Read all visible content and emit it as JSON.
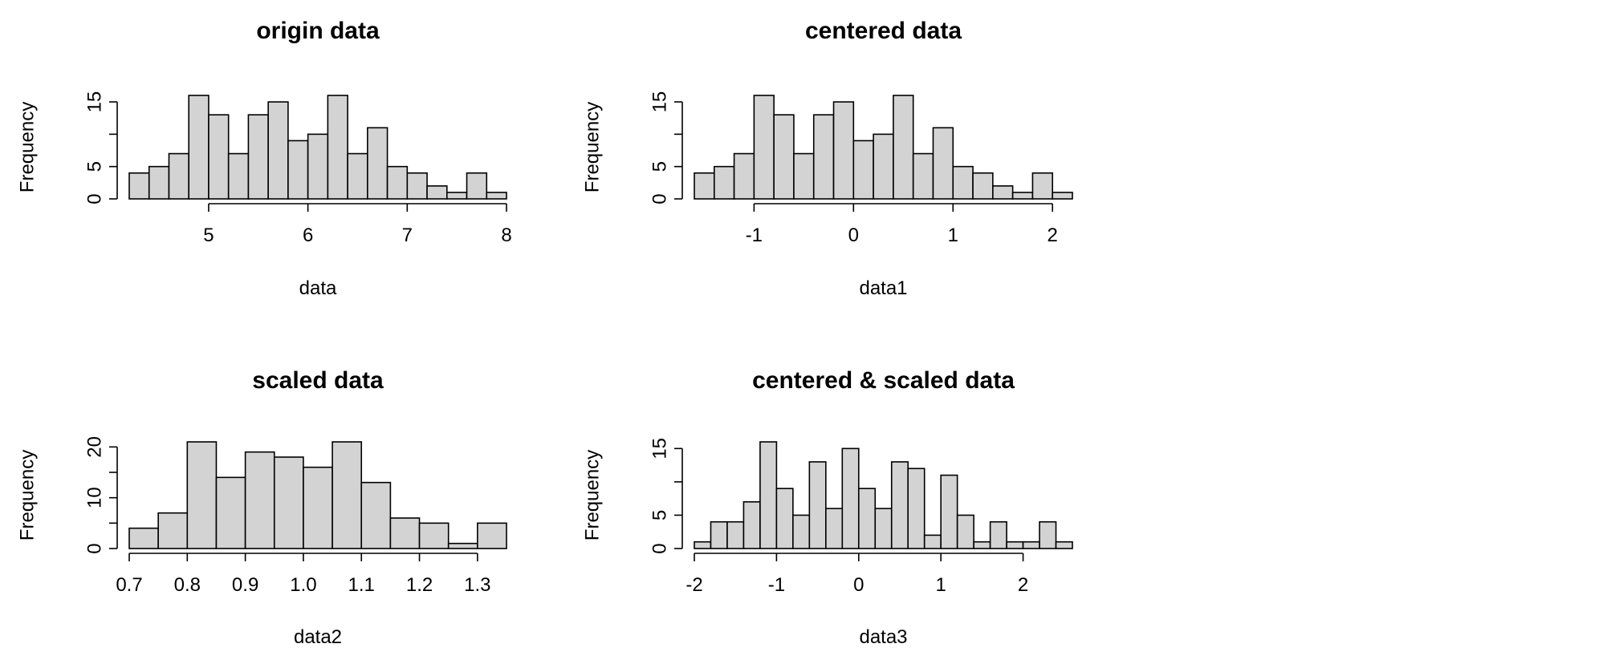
{
  "chart_data": [
    {
      "type": "bar",
      "title": "origin data",
      "xlabel": "data",
      "ylabel": "Frequency",
      "bin_edges": [
        4.2,
        4.4,
        4.6,
        4.8,
        5.0,
        5.2,
        5.4,
        5.6,
        5.8,
        6.0,
        6.2,
        6.4,
        6.6,
        6.8,
        7.0,
        7.2,
        7.4,
        7.6,
        7.8,
        8.0
      ],
      "values": [
        4,
        5,
        7,
        16,
        13,
        7,
        13,
        15,
        9,
        10,
        16,
        7,
        11,
        5,
        4,
        2,
        1,
        4,
        1
      ],
      "x_ticks": [
        5,
        6,
        7,
        8
      ],
      "x_tick_labels": [
        "5",
        "6",
        "7",
        "8"
      ],
      "y_ticks": [
        0,
        5,
        10,
        15
      ],
      "y_tick_labels": [
        "0",
        "5",
        "",
        "15"
      ],
      "xlim": [
        4.2,
        8.0
      ],
      "ylim": [
        0,
        16
      ]
    },
    {
      "type": "bar",
      "title": "centered data",
      "xlabel": "data1",
      "ylabel": "Frequency",
      "bin_edges": [
        -1.6,
        -1.4,
        -1.2,
        -1.0,
        -0.8,
        -0.6,
        -0.4,
        -0.2,
        0.0,
        0.2,
        0.4,
        0.6,
        0.8,
        1.0,
        1.2,
        1.4,
        1.6,
        1.8,
        2.0,
        2.2
      ],
      "values": [
        4,
        5,
        7,
        16,
        13,
        7,
        13,
        15,
        9,
        10,
        16,
        7,
        11,
        5,
        4,
        2,
        1,
        4,
        1
      ],
      "x_ticks": [
        -1,
        0,
        1,
        2
      ],
      "x_tick_labels": [
        "-1",
        "0",
        "1",
        "2"
      ],
      "y_ticks": [
        0,
        5,
        10,
        15
      ],
      "y_tick_labels": [
        "0",
        "5",
        "",
        "15"
      ],
      "xlim": [
        -1.6,
        2.2
      ],
      "ylim": [
        0,
        16
      ]
    },
    {
      "type": "bar",
      "title": "scaled data",
      "xlabel": "data2",
      "ylabel": "Frequency",
      "bin_edges": [
        0.7,
        0.75,
        0.8,
        0.85,
        0.9,
        0.95,
        1.0,
        1.05,
        1.1,
        1.15,
        1.2,
        1.25,
        1.3,
        1.35
      ],
      "values": [
        4,
        7,
        21,
        14,
        19,
        18,
        16,
        21,
        13,
        6,
        5,
        1,
        5
      ],
      "x_ticks": [
        0.7,
        0.8,
        0.9,
        1.0,
        1.1,
        1.2,
        1.3
      ],
      "x_tick_labels": [
        "0.7",
        "0.8",
        "0.9",
        "1.0",
        "1.1",
        "1.2",
        "1.3"
      ],
      "y_ticks": [
        0,
        5,
        10,
        15,
        20
      ],
      "y_tick_labels": [
        "0",
        "",
        "10",
        "",
        "20"
      ],
      "xlim": [
        0.7,
        1.35
      ],
      "ylim": [
        0,
        21
      ]
    },
    {
      "type": "bar",
      "title": "centered & scaled data",
      "xlabel": "data3",
      "ylabel": "Frequency",
      "bin_edges": [
        -2.0,
        -1.8,
        -1.6,
        -1.4,
        -1.2,
        -1.0,
        -0.8,
        -0.6,
        -0.4,
        -0.2,
        0.0,
        0.2,
        0.4,
        0.6,
        0.8,
        1.0,
        1.2,
        1.4,
        1.6,
        1.8,
        2.0,
        2.2,
        2.4,
        2.6
      ],
      "values": [
        1,
        4,
        4,
        7,
        16,
        9,
        5,
        13,
        6,
        15,
        9,
        6,
        13,
        12,
        2,
        11,
        5,
        1,
        4,
        1,
        1,
        4,
        1
      ],
      "x_ticks": [
        -2,
        -1,
        0,
        1,
        2
      ],
      "x_tick_labels": [
        "-2",
        "-1",
        "0",
        "1",
        "2"
      ],
      "y_ticks": [
        0,
        5,
        10,
        15
      ],
      "y_tick_labels": [
        "0",
        "5",
        "",
        "15"
      ],
      "xlim": [
        -2.0,
        2.6
      ],
      "ylim": [
        0,
        16
      ]
    }
  ]
}
